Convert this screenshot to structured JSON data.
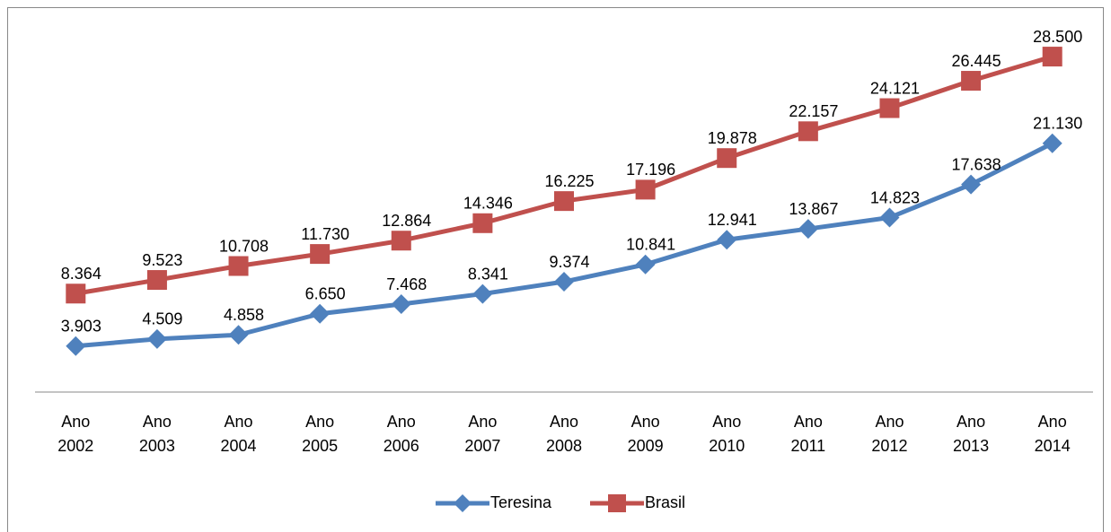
{
  "chart_data": {
    "type": "line",
    "categories": [
      "Ano 2002",
      "Ano 2003",
      "Ano 2004",
      "Ano 2005",
      "Ano 2006",
      "Ano 2007",
      "Ano 2008",
      "Ano 2009",
      "Ano 2010",
      "Ano 2011",
      "Ano 2012",
      "Ano 2013",
      "Ano 2014"
    ],
    "series": [
      {
        "name": "Teresina",
        "color": "#4f81bd",
        "marker": "diamond",
        "values": [
          3903,
          4509,
          4858,
          6650,
          7468,
          8341,
          9374,
          10841,
          12941,
          13867,
          14823,
          17638,
          21130
        ],
        "value_labels": [
          "3.903",
          "4.509",
          "4.858",
          "6.650",
          "7.468",
          "8.341",
          "9.374",
          "10.841",
          "12.941",
          "13.867",
          "14.823",
          "17.638",
          "21.130"
        ]
      },
      {
        "name": "Brasil",
        "color": "#c0504d",
        "marker": "square",
        "values": [
          8364,
          9523,
          10708,
          11730,
          12864,
          14346,
          16225,
          17196,
          19878,
          22157,
          24121,
          26445,
          28500
        ],
        "value_labels": [
          "8.364",
          "9.523",
          "10.708",
          "11.730",
          "12.864",
          "14.346",
          "16.225",
          "17.196",
          "19.878",
          "22.157",
          "24.121",
          "26.445",
          "28.500"
        ]
      }
    ],
    "ylim": [
      0,
      30000
    ],
    "legend": "bottom"
  }
}
